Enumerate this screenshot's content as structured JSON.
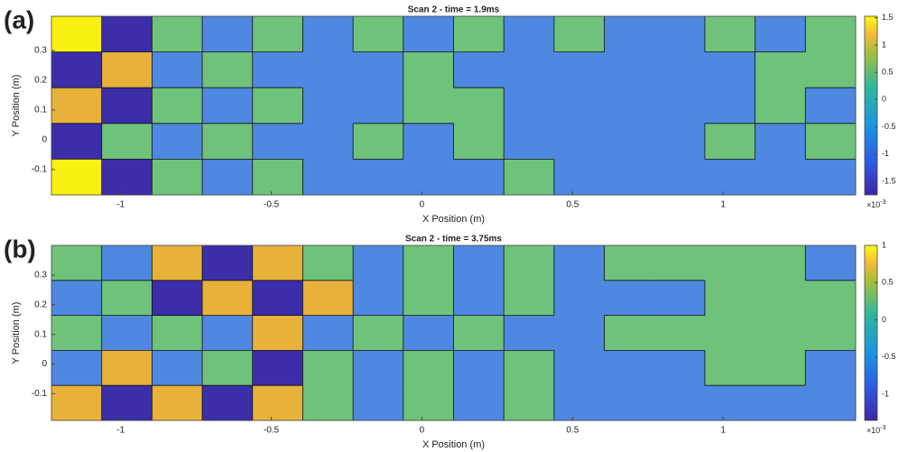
{
  "chart_data": [
    {
      "type": "contour",
      "label": "(a)",
      "title": "Scan 2 - time = 1.9ms",
      "xlabel": "X Position (m)",
      "ylabel": "Y Position (m)",
      "xlim": [
        -1.23,
        1.44
      ],
      "ylim": [
        -0.185,
        0.415
      ],
      "xticks": [
        -1,
        -0.5,
        0,
        0.5,
        1
      ],
      "yticks": [
        -0.1,
        0,
        0.1,
        0.2,
        0.3
      ],
      "clim": [
        -1.75,
        1.53
      ],
      "cticks": [
        -1.5,
        -1,
        -0.5,
        0,
        0.5,
        1,
        1.5
      ],
      "colorbar_multiplier": "×10",
      "colorbar_exponent": "-3",
      "levels": [
        -0.75,
        0,
        0.75,
        1.25
      ],
      "level_colors": [
        "#3b2ea8",
        "#4e88e0",
        "#6ec27a",
        "#e7b13a",
        "#f9f10f"
      ],
      "z": [
        [
          1.3,
          -1.2,
          0.4,
          -0.3,
          0.3,
          -0.3,
          0.2,
          -0.3,
          0.2,
          -0.3,
          0.2,
          -0.3,
          -0.3,
          0.2,
          -0.3,
          0.2
        ],
        [
          -1.0,
          0.8,
          -0.6,
          0.3,
          -0.3,
          -0.3,
          -0.3,
          0.2,
          -0.3,
          -0.3,
          -0.3,
          -0.3,
          -0.3,
          -0.3,
          0.2,
          0.2
        ],
        [
          0.9,
          -1.1,
          0.5,
          -0.4,
          0.3,
          -0.3,
          -0.3,
          0.2,
          0.2,
          -0.3,
          -0.3,
          -0.3,
          -0.3,
          -0.3,
          0.2,
          -0.3
        ],
        [
          -1.3,
          0.7,
          -0.5,
          0.3,
          -0.3,
          -0.3,
          0.2,
          -0.3,
          0.2,
          -0.3,
          -0.3,
          -0.3,
          -0.3,
          0.2,
          -0.3,
          0.2
        ],
        [
          1.4,
          -1.0,
          0.4,
          -0.3,
          0.3,
          -0.3,
          -0.3,
          -0.3,
          -0.3,
          0.2,
          -0.3,
          -0.3,
          -0.3,
          -0.3,
          -0.3,
          -0.3
        ]
      ]
    },
    {
      "type": "contour",
      "label": "(b)",
      "title": "Scan 2 - time = 3.75ms",
      "xlabel": "X Position (m)",
      "ylabel": "Y Position (m)",
      "xlim": [
        -1.23,
        1.44
      ],
      "ylim": [
        -0.19,
        0.4
      ],
      "xticks": [
        -1,
        -0.5,
        0,
        0.5,
        1
      ],
      "yticks": [
        -0.1,
        0,
        0.1,
        0.2,
        0.3
      ],
      "clim": [
        -1.35,
        1
      ],
      "cticks": [
        -1,
        -0.5,
        0,
        0.5,
        1
      ],
      "colorbar_multiplier": "×10",
      "colorbar_exponent": "-3",
      "levels": [
        -0.75,
        0,
        0.5
      ],
      "level_colors": [
        "#3b2ea8",
        "#4e88e0",
        "#6ec27a",
        "#e7b13a"
      ],
      "z": [
        [
          0.3,
          -0.3,
          0.7,
          -0.9,
          0.6,
          0.3,
          -0.3,
          0.3,
          -0.3,
          0.3,
          -0.3,
          0.3,
          0.3,
          0.3,
          0.3,
          -0.3
        ],
        [
          -0.3,
          0.3,
          -0.9,
          0.6,
          -0.8,
          0.6,
          -0.3,
          0.3,
          -0.3,
          0.3,
          -0.3,
          -0.3,
          -0.3,
          0.3,
          0.3,
          0.3
        ],
        [
          0.3,
          -0.3,
          0.3,
          -0.3,
          0.6,
          -0.3,
          0.3,
          -0.3,
          0.3,
          -0.3,
          -0.3,
          0.3,
          0.3,
          0.3,
          0.3,
          0.3
        ],
        [
          -0.3,
          0.6,
          -0.3,
          0.3,
          -0.9,
          0.3,
          -0.3,
          0.3,
          -0.3,
          0.3,
          -0.3,
          -0.3,
          -0.3,
          0.3,
          0.3,
          -0.3
        ],
        [
          0.8,
          -0.9,
          0.6,
          -0.9,
          0.6,
          0.3,
          -0.3,
          0.3,
          -0.3,
          0.3,
          -0.3,
          -0.3,
          -0.3,
          -0.3,
          -0.3,
          -0.3
        ]
      ]
    }
  ]
}
